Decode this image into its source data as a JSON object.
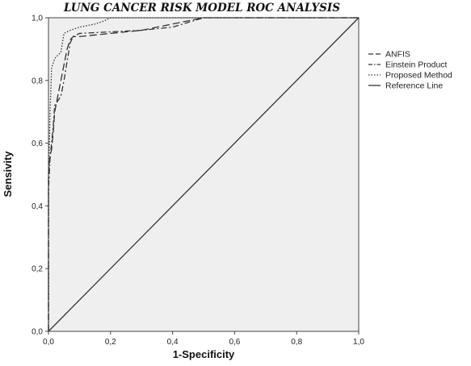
{
  "chart_data": {
    "type": "line",
    "title": "LUNG CANCER RISK MODEL ROC ANALYSIS",
    "xlabel": "1-Specificity",
    "ylabel": "Sensivity",
    "xlim": [
      0,
      1
    ],
    "ylim": [
      0,
      1
    ],
    "x_ticks": [
      "0,0",
      "0,2",
      "0,4",
      "0,6",
      "0,8",
      "1,0"
    ],
    "y_ticks": [
      "0,0",
      "0,2",
      "0,4",
      "0,6",
      "0,8",
      "1,0"
    ],
    "grid": false,
    "plot_background": "#efefef",
    "legend_position": "right",
    "series": [
      {
        "name": "ANFIS",
        "dash": "long-dash",
        "x": [
          0,
          0,
          0.005,
          0.01,
          0.015,
          0.02,
          0.03,
          0.05,
          0.06,
          0.07,
          0.08,
          0.1,
          0.2,
          0.3,
          0.4,
          0.45,
          0.5,
          0.6,
          1.0
        ],
        "y": [
          0,
          0.5,
          0.56,
          0.58,
          0.63,
          0.7,
          0.75,
          0.85,
          0.9,
          0.93,
          0.94,
          0.94,
          0.95,
          0.96,
          0.98,
          0.99,
          1.0,
          1.0,
          1.0
        ]
      },
      {
        "name": "Einstein Product",
        "dash": "dash-dot",
        "x": [
          0,
          0,
          0.005,
          0.01,
          0.015,
          0.02,
          0.04,
          0.05,
          0.07,
          0.08,
          0.1,
          0.2,
          0.3,
          0.4,
          0.5,
          1.0
        ],
        "y": [
          0,
          0.45,
          0.55,
          0.6,
          0.65,
          0.72,
          0.75,
          0.8,
          0.92,
          0.94,
          0.95,
          0.955,
          0.96,
          0.97,
          1.0,
          1.0
        ]
      },
      {
        "name": "Proposed Method",
        "dash": "dotted",
        "x": [
          0,
          0,
          0.003,
          0.005,
          0.008,
          0.01,
          0.02,
          0.03,
          0.04,
          0.05,
          0.07,
          0.1,
          0.15,
          0.18,
          0.2,
          0.3,
          0.4,
          1.0
        ],
        "y": [
          0,
          0.5,
          0.6,
          0.7,
          0.78,
          0.84,
          0.87,
          0.88,
          0.89,
          0.95,
          0.96,
          0.97,
          0.98,
          0.99,
          1.0,
          1.0,
          1.0,
          1.0
        ]
      },
      {
        "name": "Reference Line",
        "dash": "solid",
        "x": [
          0,
          1
        ],
        "y": [
          0,
          1
        ]
      }
    ]
  }
}
